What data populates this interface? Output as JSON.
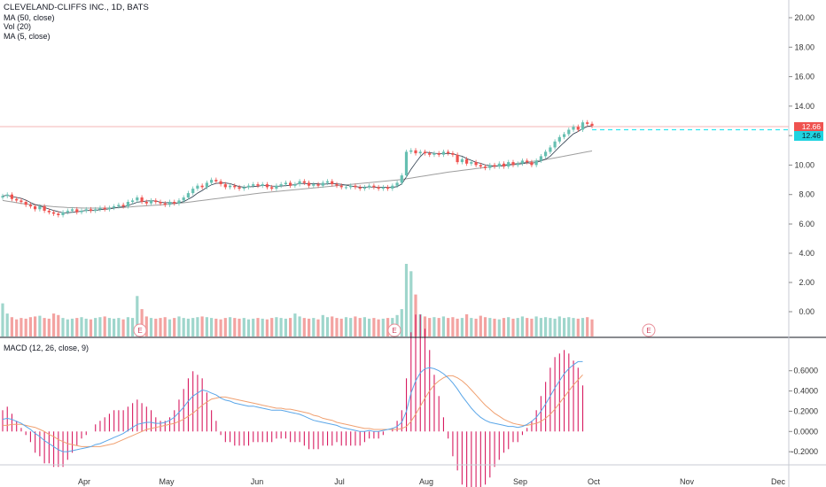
{
  "chart": {
    "title": "CLEVELAND-CLIFFS INC., 1D, BATS",
    "indicators": [
      "MA (50, close)",
      "Vol (20)",
      "MA (5, close)"
    ],
    "macd_label": "MACD (12, 26, close, 9)",
    "last_price_red": "12.66",
    "last_price_cyan": "12.46",
    "earnings_marker": "E"
  },
  "colors": {
    "up": "#66bfb1",
    "down": "#ef5350",
    "vol_up": "#9fd6cc",
    "vol_down": "#f3a3a1",
    "ma50": "#9e9e9e",
    "ma5": "#2a3a4a",
    "macd": "#5aa6e8",
    "signal": "#f0a070",
    "hist": "#d81b60",
    "cyan": "#2ee6f0",
    "price_line": "#f5b5b5"
  },
  "chart_data": [
    {
      "type": "candlestick",
      "title": "CLEVELAND-CLIFFS INC., 1D, BATS",
      "y_ticks": [
        "20.00",
        "18.00",
        "16.00",
        "14.00",
        "12.00",
        "10.00",
        "8.00",
        "6.00"
      ],
      "ylim": [
        4.3,
        21.8
      ],
      "x_ticks": [
        "Apr",
        "May",
        "Jun",
        "Jul",
        "Aug",
        "Sep",
        "Oct",
        "Nov",
        "Dec"
      ],
      "close": [
        7.9,
        8.0,
        7.7,
        7.6,
        7.5,
        7.3,
        7.2,
        7.0,
        7.2,
        6.9,
        6.8,
        6.7,
        6.6,
        6.8,
        6.9,
        7.0,
        6.8,
        6.9,
        7.0,
        6.9,
        7.0,
        7.1,
        7.0,
        7.1,
        7.2,
        7.3,
        7.2,
        7.5,
        7.6,
        7.8,
        7.5,
        7.4,
        7.6,
        7.5,
        7.4,
        7.3,
        7.5,
        7.4,
        7.6,
        7.8,
        8.1,
        8.4,
        8.6,
        8.5,
        8.8,
        9.0,
        8.9,
        8.7,
        8.5,
        8.6,
        8.5,
        8.4,
        8.5,
        8.6,
        8.7,
        8.6,
        8.7,
        8.5,
        8.4,
        8.6,
        8.7,
        8.8,
        8.6,
        8.7,
        8.9,
        8.8,
        8.6,
        8.7,
        8.6,
        8.8,
        8.9,
        8.7,
        8.6,
        8.5,
        8.5,
        8.6,
        8.5,
        8.4,
        8.5,
        8.6,
        8.5,
        8.4,
        8.5,
        8.4,
        8.6,
        8.8,
        9.3,
        10.9,
        11.0,
        10.8,
        10.9,
        10.8,
        10.7,
        10.8,
        10.7,
        10.9,
        10.8,
        10.7,
        10.2,
        10.4,
        10.1,
        10.2,
        10.0,
        9.9,
        9.8,
        10.0,
        9.9,
        10.1,
        9.9,
        10.2,
        10.0,
        10.1,
        10.3,
        10.2,
        10.0,
        10.3,
        10.6,
        10.9,
        11.2,
        11.6,
        11.9,
        12.1,
        12.4,
        12.6,
        12.4,
        12.9,
        12.8,
        12.66
      ],
      "volume": [
        1.3,
        0.6,
        0.35,
        0.2,
        0.3,
        0.25,
        0.35,
        0.4,
        0.45,
        0.3,
        0.25,
        0.6,
        0.5,
        0.3,
        0.2,
        0.25,
        0.3,
        0.35,
        0.25,
        0.2,
        0.3,
        0.35,
        0.4,
        0.3,
        0.25,
        0.3,
        0.2,
        0.35,
        0.3,
        1.8,
        0.9,
        0.4,
        0.3,
        0.25,
        0.3,
        0.35,
        0.2,
        0.3,
        0.4,
        0.3,
        0.25,
        0.3,
        0.35,
        0.4,
        0.35,
        0.3,
        0.25,
        0.2,
        0.3,
        0.35,
        0.3,
        0.25,
        0.3,
        0.2,
        0.25,
        0.3,
        0.25,
        0.2,
        0.3,
        0.35,
        0.3,
        0.25,
        0.3,
        0.6,
        0.4,
        0.3,
        0.25,
        0.3,
        0.2,
        0.5,
        0.35,
        0.4,
        0.3,
        0.25,
        0.35,
        0.3,
        0.4,
        0.3,
        0.35,
        0.25,
        0.3,
        0.2,
        0.25,
        0.3,
        0.3,
        0.5,
        0.9,
        4.0,
        3.5,
        1.9,
        0.55,
        0.4,
        0.3,
        0.35,
        0.3,
        0.4,
        0.3,
        0.35,
        0.25,
        0.3,
        0.55,
        0.3,
        0.25,
        0.45,
        0.35,
        0.3,
        0.25,
        0.2,
        0.3,
        0.35,
        0.25,
        0.3,
        0.4,
        0.3,
        0.25,
        0.4,
        0.3,
        0.35,
        0.3,
        0.25,
        0.4,
        0.3,
        0.35,
        0.3,
        0.25,
        0.3,
        0.35,
        0.2
      ],
      "ma50": [
        7.6,
        7.55,
        7.5,
        7.45,
        7.4,
        7.36,
        7.33,
        7.3,
        7.27,
        7.24,
        7.21,
        7.18,
        7.16,
        7.14,
        7.12,
        7.11,
        7.1,
        7.09,
        7.08,
        7.08,
        7.08,
        7.08,
        7.08,
        7.09,
        7.1,
        7.11,
        7.13,
        7.15,
        7.17,
        7.2,
        7.22,
        7.24,
        7.26,
        7.28,
        7.3,
        7.32,
        7.35,
        7.38,
        7.41,
        7.44,
        7.48,
        7.52,
        7.56,
        7.6,
        7.64,
        7.68,
        7.72,
        7.76,
        7.8,
        7.84,
        7.88,
        7.92,
        7.96,
        8.0,
        8.04,
        8.08,
        8.12,
        8.15,
        8.18,
        8.21,
        8.24,
        8.27,
        8.3,
        8.33,
        8.36,
        8.39,
        8.42,
        8.45,
        8.48,
        8.51,
        8.54,
        8.57,
        8.6,
        8.63,
        8.66,
        8.69,
        8.72,
        8.75,
        8.78,
        8.81,
        8.84,
        8.87,
        8.9,
        8.93,
        8.96,
        8.99,
        9.02,
        9.07,
        9.12,
        9.17,
        9.22,
        9.27,
        9.32,
        9.37,
        9.42,
        9.47,
        9.52,
        9.56,
        9.6,
        9.64,
        9.68,
        9.72,
        9.76,
        9.8,
        9.84,
        9.88,
        9.92,
        9.96,
        10.0,
        10.04,
        10.08,
        10.12,
        10.16,
        10.2,
        10.24,
        10.28,
        10.33,
        10.38,
        10.43,
        10.48,
        10.54,
        10.6,
        10.66,
        10.72,
        10.78,
        10.84,
        10.9,
        10.96
      ]
    },
    {
      "type": "line",
      "title": "MACD (12, 26, close, 9)",
      "y_ticks": [
        "0.6000",
        "0.4000",
        "0.2000",
        "0.0000",
        "-0.2000"
      ],
      "ylim": [
        -0.33,
        0.72
      ],
      "macd": [
        0.12,
        0.13,
        0.12,
        0.1,
        0.08,
        0.05,
        0.02,
        -0.02,
        -0.05,
        -0.09,
        -0.12,
        -0.15,
        -0.18,
        -0.2,
        -0.2,
        -0.19,
        -0.18,
        -0.17,
        -0.16,
        -0.15,
        -0.13,
        -0.12,
        -0.1,
        -0.08,
        -0.06,
        -0.04,
        -0.02,
        0.01,
        0.04,
        0.07,
        0.08,
        0.09,
        0.09,
        0.08,
        0.08,
        0.09,
        0.11,
        0.14,
        0.19,
        0.24,
        0.3,
        0.35,
        0.38,
        0.41,
        0.4,
        0.38,
        0.36,
        0.33,
        0.31,
        0.3,
        0.28,
        0.27,
        0.26,
        0.25,
        0.25,
        0.24,
        0.23,
        0.22,
        0.21,
        0.21,
        0.21,
        0.2,
        0.19,
        0.18,
        0.17,
        0.15,
        0.13,
        0.11,
        0.1,
        0.09,
        0.08,
        0.07,
        0.06,
        0.04,
        0.03,
        0.02,
        0.01,
        0.0,
        0.0,
        0.01,
        0.0,
        0.0,
        0.01,
        0.02,
        0.03,
        0.05,
        0.09,
        0.2,
        0.38,
        0.5,
        0.58,
        0.62,
        0.63,
        0.62,
        0.6,
        0.57,
        0.53,
        0.48,
        0.42,
        0.35,
        0.29,
        0.23,
        0.18,
        0.14,
        0.11,
        0.09,
        0.08,
        0.07,
        0.06,
        0.05,
        0.05,
        0.04,
        0.05,
        0.07,
        0.1,
        0.14,
        0.2,
        0.27,
        0.35,
        0.43,
        0.5,
        0.57,
        0.62,
        0.66,
        0.69,
        0.69
      ],
      "signal": [
        0.06,
        0.06,
        0.07,
        0.07,
        0.07,
        0.06,
        0.05,
        0.04,
        0.02,
        0.0,
        -0.03,
        -0.05,
        -0.08,
        -0.1,
        -0.12,
        -0.13,
        -0.14,
        -0.15,
        -0.15,
        -0.15,
        -0.15,
        -0.15,
        -0.14,
        -0.13,
        -0.12,
        -0.1,
        -0.08,
        -0.06,
        -0.04,
        -0.02,
        0.0,
        0.02,
        0.03,
        0.04,
        0.05,
        0.06,
        0.07,
        0.08,
        0.1,
        0.12,
        0.15,
        0.18,
        0.22,
        0.26,
        0.29,
        0.32,
        0.33,
        0.34,
        0.34,
        0.33,
        0.32,
        0.31,
        0.3,
        0.29,
        0.28,
        0.27,
        0.26,
        0.25,
        0.24,
        0.23,
        0.23,
        0.22,
        0.22,
        0.21,
        0.2,
        0.19,
        0.18,
        0.16,
        0.15,
        0.13,
        0.12,
        0.11,
        0.09,
        0.08,
        0.07,
        0.06,
        0.05,
        0.04,
        0.03,
        0.03,
        0.02,
        0.02,
        0.02,
        0.02,
        0.02,
        0.02,
        0.03,
        0.05,
        0.1,
        0.17,
        0.25,
        0.33,
        0.4,
        0.46,
        0.5,
        0.53,
        0.55,
        0.55,
        0.53,
        0.5,
        0.46,
        0.41,
        0.36,
        0.31,
        0.26,
        0.22,
        0.18,
        0.15,
        0.12,
        0.1,
        0.08,
        0.07,
        0.06,
        0.06,
        0.07,
        0.08,
        0.1,
        0.13,
        0.17,
        0.22,
        0.28,
        0.34,
        0.4,
        0.46,
        0.51,
        0.56
      ]
    }
  ]
}
